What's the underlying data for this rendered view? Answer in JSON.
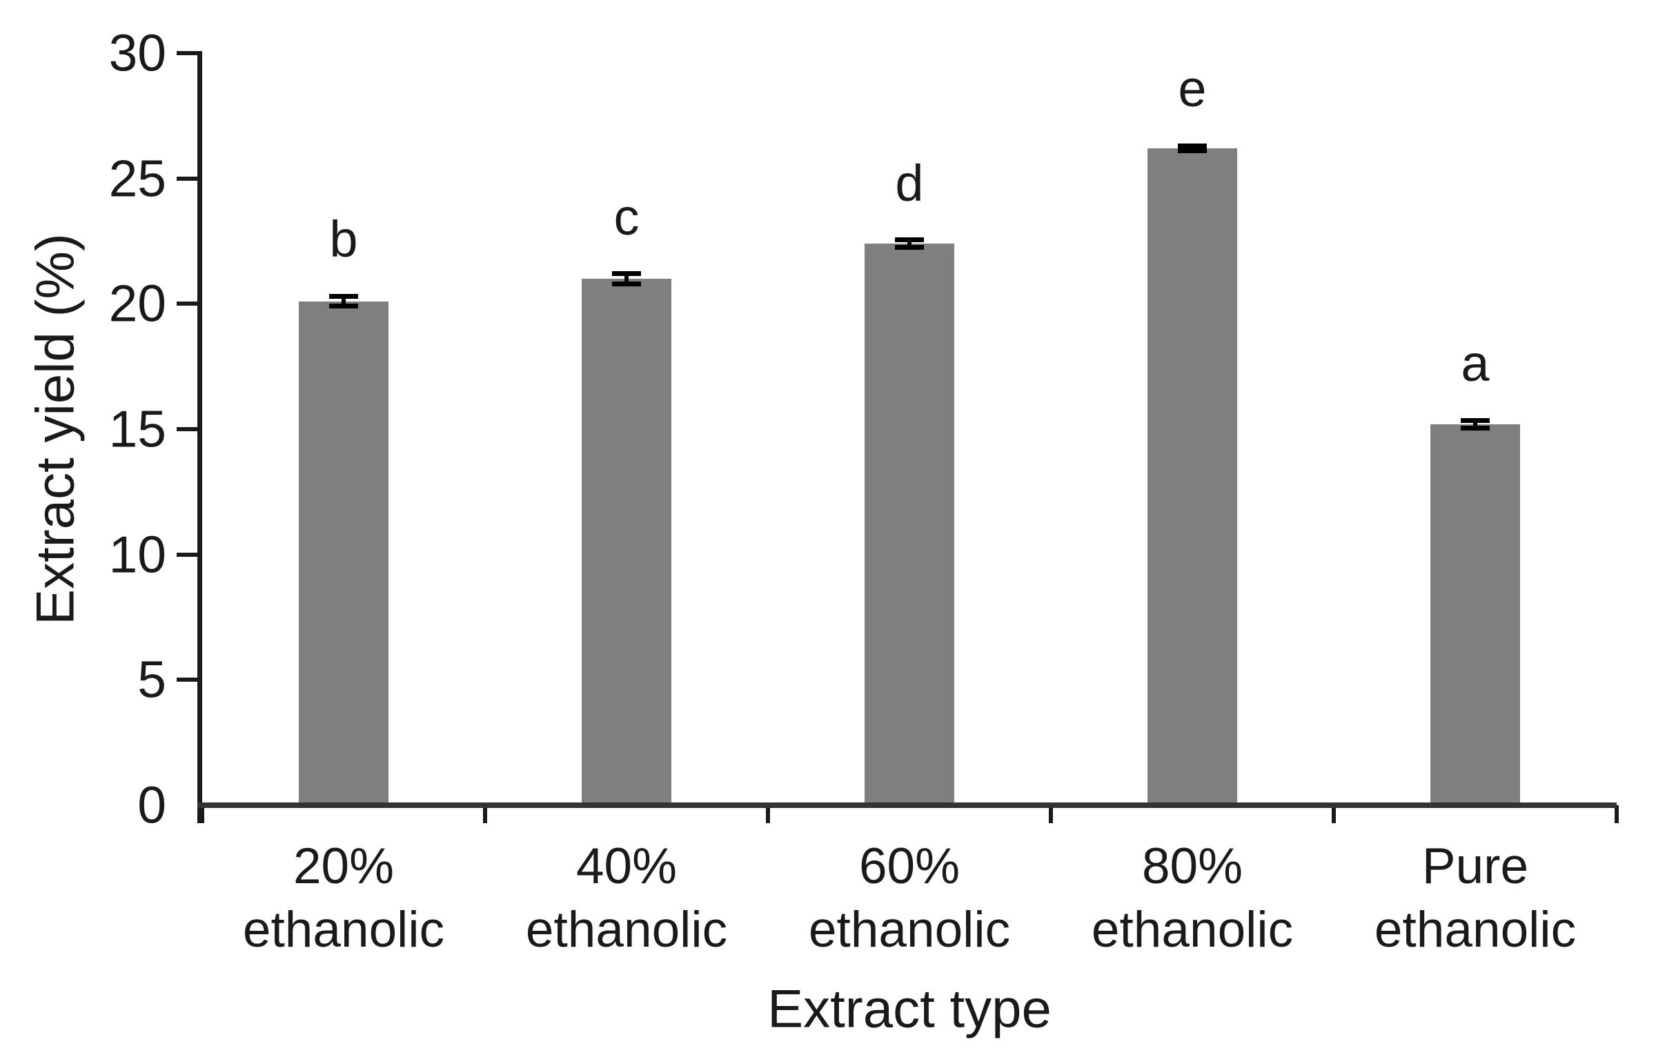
{
  "figure": {
    "background": "#ffffff"
  },
  "chart_data": {
    "type": "bar",
    "title": "",
    "xlabel": "Extract type",
    "ylabel": "Extract yield (%)",
    "categories": [
      [
        "20%",
        "ethanolic"
      ],
      [
        "40%",
        "ethanolic"
      ],
      [
        "60%",
        "ethanolic"
      ],
      [
        "80%",
        "ethanolic"
      ],
      [
        "Pure",
        "ethanolic"
      ]
    ],
    "values": [
      20.1,
      21.0,
      22.4,
      26.2,
      15.2
    ],
    "errors": [
      0.2,
      0.2,
      0.15,
      0.1,
      0.15
    ],
    "sig_letters": [
      "b",
      "c",
      "d",
      "e",
      "a"
    ],
    "ylim": [
      0,
      30
    ],
    "yticks": [
      0,
      5,
      10,
      15,
      20,
      25,
      30
    ],
    "bar_color": "#7f7f7f",
    "axis_color": "#1a1a1a",
    "error_bar_color": "#000000",
    "grid": "off",
    "legend": "none"
  }
}
